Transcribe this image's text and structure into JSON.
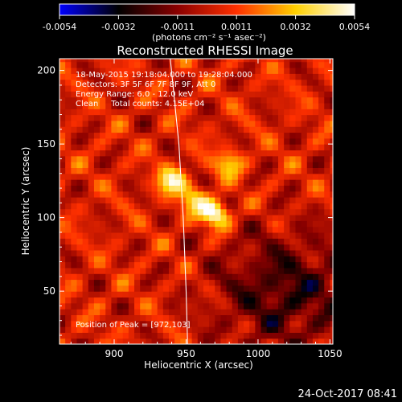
{
  "chart_data": {
    "type": "heatmap",
    "title": "Reconstructed RHESSI Image",
    "xlabel": "Heliocentric X (arcsec)",
    "ylabel": "Heliocentric Y (arcsec)",
    "xlim": [
      862,
      1052
    ],
    "ylim": [
      14,
      208
    ],
    "xticks": [
      900,
      950,
      1000,
      1050
    ],
    "yticks": [
      50,
      100,
      150,
      200
    ],
    "colorbar": {
      "vmin": -0.0054,
      "vmax": 0.0054,
      "ticks": [
        "-0.0054",
        "-0.0032",
        "-0.0011",
        "0.0011",
        "0.0032",
        "0.0054"
      ],
      "unit_label": "(photons cm⁻² s⁻¹ asec⁻²)",
      "colormap": [
        "#0000ff",
        "#000000",
        "#8a0000",
        "#ff3000",
        "#ffd000",
        "#ffffff"
      ]
    },
    "annotations": [
      "18-May-2015 19:18:04.000 to 19:28:04.000",
      "Detectors: 3F 5F 6F 7F 8F 9F, Att 0",
      "Energy Range: 6.0 - 12.0 keV",
      "Clean     Total counts: 4.15E+04"
    ],
    "peak_label": "Position of Peak = [972,103]",
    "peak_position": [
      972,
      103
    ],
    "sources": [
      {
        "x": 940,
        "y": 125,
        "amp": 0.0042
      },
      {
        "x": 970,
        "y": 103,
        "amp": 0.0054
      },
      {
        "x": 980,
        "y": 137,
        "amp": 0.003
      },
      {
        "x": 955,
        "y": 112,
        "amp": 0.003
      }
    ],
    "limb_points": [
      [
        939,
        208
      ],
      [
        945,
        150
      ],
      [
        948,
        100
      ],
      [
        950,
        50
      ],
      [
        951,
        14
      ]
    ]
  },
  "footer": {
    "date": "24-Oct-2017 08:41"
  }
}
